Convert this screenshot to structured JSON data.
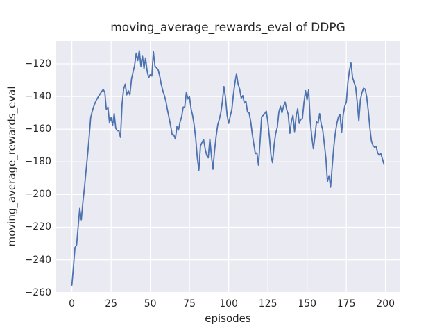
{
  "window": {
    "title": "moving_average_rewards_eval of DDPG"
  },
  "colors": {
    "line": "#4c72b0",
    "axes_background": "#eaeaf2",
    "grid": "#ffffff",
    "text": "#262626",
    "figure_background": "#ffffff"
  },
  "chart_data": {
    "type": "line",
    "title": "moving_average_rewards_eval of DDPG",
    "xlabel": "episodes",
    "ylabel": "moving_average_rewards_eval",
    "x_ticks": [
      0,
      25,
      50,
      75,
      100,
      125,
      150,
      175,
      200
    ],
    "y_ticks": [
      -120,
      -140,
      -160,
      -180,
      -200,
      -220,
      -240,
      -260
    ],
    "xlim": [
      -10,
      209
    ],
    "ylim": [
      -259.7,
      -106.0
    ],
    "grid": true,
    "legend": false,
    "series": [
      {
        "name": "moving_average_rewards_eval",
        "color": "#4c72b0",
        "x": [
          0,
          1,
          2,
          3,
          4,
          5,
          6,
          7,
          8,
          9,
          10,
          11,
          12,
          13,
          14,
          15,
          16,
          17,
          18,
          19,
          20,
          21,
          22,
          23,
          24,
          25,
          26,
          27,
          28,
          29,
          30,
          31,
          32,
          33,
          34,
          35,
          36,
          37,
          38,
          39,
          40,
          41,
          42,
          43,
          44,
          45,
          46,
          47,
          48,
          49,
          50,
          51,
          52,
          53,
          54,
          55,
          56,
          57,
          58,
          59,
          60,
          61,
          62,
          63,
          64,
          65,
          66,
          67,
          68,
          69,
          70,
          71,
          72,
          73,
          74,
          75,
          76,
          77,
          78,
          79,
          80,
          81,
          82,
          83,
          84,
          85,
          86,
          87,
          88,
          89,
          90,
          91,
          92,
          93,
          94,
          95,
          96,
          97,
          98,
          99,
          100,
          101,
          102,
          103,
          104,
          105,
          106,
          107,
          108,
          109,
          110,
          111,
          112,
          113,
          114,
          115,
          116,
          117,
          118,
          119,
          120,
          121,
          122,
          123,
          124,
          125,
          126,
          127,
          128,
          129,
          130,
          131,
          132,
          133,
          134,
          135,
          136,
          137,
          138,
          139,
          140,
          141,
          142,
          143,
          144,
          145,
          146,
          147,
          148,
          149,
          150,
          151,
          152,
          153,
          154,
          155,
          156,
          157,
          158,
          159,
          160,
          161,
          162,
          163,
          164,
          165,
          166,
          167,
          168,
          169,
          170,
          171,
          172,
          173,
          174,
          175,
          176,
          177,
          178,
          179,
          180,
          181,
          182,
          183,
          184,
          185,
          186,
          187,
          188,
          189,
          190,
          191,
          192,
          193,
          194,
          195,
          196,
          197,
          198,
          199
        ],
        "y": [
          -255.5,
          -244,
          -232.5,
          -231,
          -220,
          -208.5,
          -215.5,
          -205,
          -196,
          -186,
          -176,
          -165,
          -153,
          -149,
          -146,
          -143.5,
          -141.5,
          -140,
          -138.5,
          -137,
          -135.7,
          -137.5,
          -148,
          -146.5,
          -156,
          -153,
          -157.5,
          -150.5,
          -159.5,
          -161,
          -161,
          -165,
          -145,
          -135.5,
          -132.5,
          -139,
          -136.5,
          -139,
          -129.5,
          -125,
          -121,
          -113.5,
          -118,
          -112,
          -121.5,
          -115,
          -123,
          -116.5,
          -124.5,
          -128.5,
          -126.5,
          -127.5,
          -112.5,
          -121.5,
          -122.5,
          -123.5,
          -127.5,
          -132.5,
          -136.5,
          -139.5,
          -143,
          -148.5,
          -153,
          -158,
          -163.5,
          -163.5,
          -166,
          -158.5,
          -160.5,
          -155.5,
          -152.5,
          -146.5,
          -146.5,
          -137.5,
          -141.5,
          -140,
          -147.5,
          -151.5,
          -157.5,
          -166,
          -177.5,
          -185,
          -170.5,
          -168,
          -166.5,
          -172,
          -176,
          -177.5,
          -166,
          -176.5,
          -184.5,
          -173,
          -164.5,
          -157.5,
          -154,
          -150,
          -143,
          -134,
          -141,
          -151.5,
          -156.5,
          -152,
          -148,
          -139,
          -131.5,
          -126,
          -132.5,
          -135.5,
          -141,
          -139.5,
          -144,
          -143,
          -149.5,
          -150,
          -155,
          -162.5,
          -169,
          -175,
          -174.5,
          -182,
          -168,
          -152.5,
          -151.5,
          -150.5,
          -149,
          -155.5,
          -165,
          -176.5,
          -180.5,
          -169.5,
          -162.5,
          -159,
          -149.5,
          -146,
          -150,
          -146,
          -143.5,
          -148,
          -151,
          -162.5,
          -155.5,
          -151.5,
          -161.5,
          -152.5,
          -147.5,
          -156.5,
          -154,
          -153.5,
          -144,
          -136.5,
          -142,
          -136,
          -155,
          -164.5,
          -172,
          -164.5,
          -155.5,
          -156.5,
          -150.5,
          -157,
          -160.5,
          -169,
          -178,
          -192,
          -188.5,
          -195.5,
          -183,
          -171,
          -162.5,
          -156.5,
          -152.5,
          -151,
          -162,
          -151.5,
          -146,
          -143.5,
          -131.5,
          -124,
          -119.5,
          -128.5,
          -131.5,
          -134.5,
          -144,
          -155,
          -142,
          -137.5,
          -135,
          -135.5,
          -140,
          -148.5,
          -159,
          -167,
          -170,
          -171,
          -170.5,
          -174.5,
          -176,
          -175,
          -178,
          -181.5
        ]
      }
    ]
  }
}
